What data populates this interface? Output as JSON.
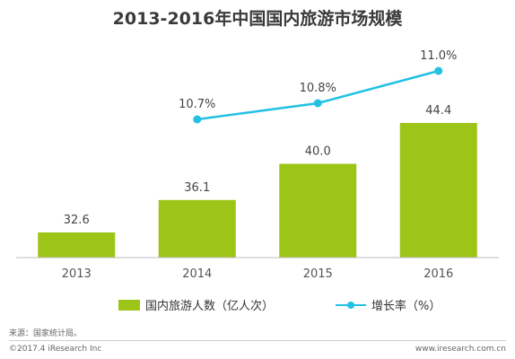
{
  "chart_data": {
    "type": "bar",
    "title": "2013-2016年中国国内旅游市场规模",
    "categories": [
      "2013",
      "2014",
      "2015",
      "2016"
    ],
    "series": [
      {
        "name": "国内旅游人数（亿人次）",
        "type": "bar",
        "values": [
          32.6,
          36.1,
          40.0,
          44.4
        ],
        "labels": [
          "32.6",
          "36.1",
          "40.0",
          "44.4"
        ]
      },
      {
        "name": "增长率（%）",
        "type": "line",
        "values": [
          null,
          10.7,
          10.8,
          11.0
        ],
        "labels": [
          "",
          "10.7%",
          "10.8%",
          "11.0%"
        ]
      }
    ],
    "colors": {
      "bar": "#9dc517",
      "line": "#22c1e3",
      "axis": "#bbbbbb"
    },
    "legend_position": "bottom"
  },
  "source": "来源：国家统计局。",
  "footer": {
    "copyright": "©2017.4 iResearch Inc",
    "website": "www.iresearch.com.cn"
  }
}
